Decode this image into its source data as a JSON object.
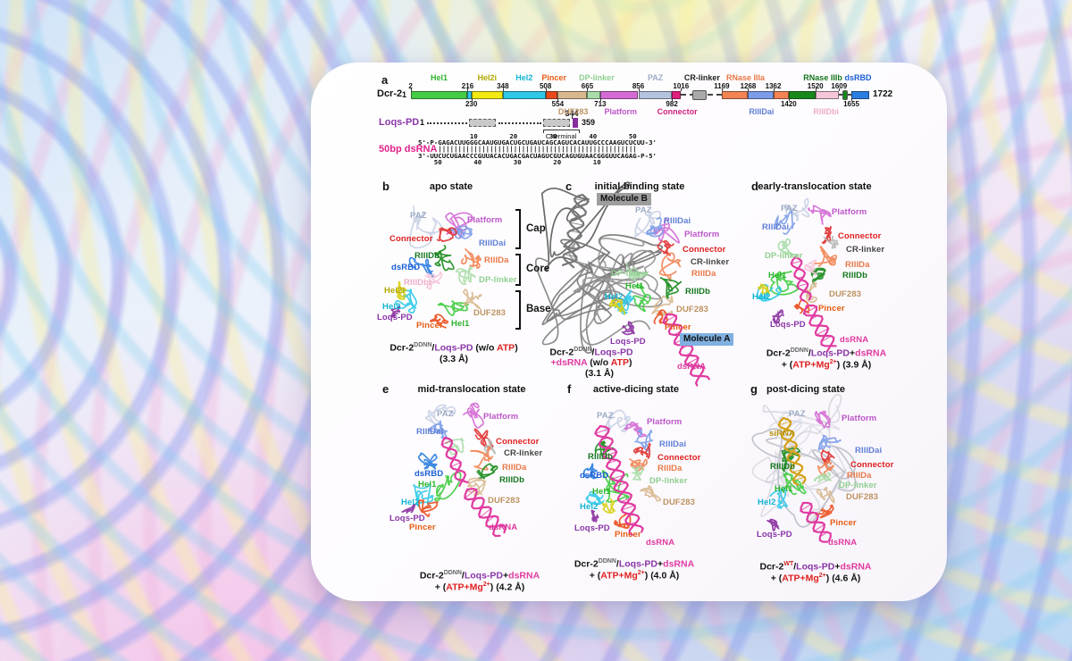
{
  "panel_a": {
    "letter": "a",
    "dcr2": {
      "label": "Dcr-2",
      "start": "1",
      "end": "1722",
      "segments": [
        {
          "n": "Hel1",
          "s": 2,
          "e": 216,
          "c": "#44cc44"
        },
        {
          "n": "Hel2",
          "s": 216,
          "e": 230,
          "c": "#2fc9e8"
        },
        {
          "n": "Hel2i",
          "s": 230,
          "e": 348,
          "c": "#f3e812"
        },
        {
          "n": "Hel2",
          "s": 348,
          "e": 508,
          "c": "#2fc9e8"
        },
        {
          "n": "Pincer",
          "s": 508,
          "e": 554,
          "c": "#ea4a1a"
        },
        {
          "n": "DUF283",
          "s": 554,
          "e": 665,
          "c": "#d7b88f"
        },
        {
          "n": "DP-linker",
          "s": 665,
          "e": 713,
          "c": "#a9dca9"
        },
        {
          "n": "Platform",
          "s": 713,
          "e": 856,
          "c": "#d46ad4"
        },
        {
          "n": "PAZ",
          "s": 856,
          "e": 982,
          "c": "#b3c3de"
        },
        {
          "n": "Connector",
          "s": 982,
          "e": 1016,
          "c": "#e01f7e"
        },
        {
          "n": "CR-linker",
          "s": 1016,
          "e": 1169,
          "type": "dash"
        },
        {
          "n": "CR-linker",
          "s": 1060,
          "e": 1112,
          "c": "#a9a9a9",
          "type": "box"
        },
        {
          "n": "RNase IIIa",
          "s": 1169,
          "e": 1268,
          "c": "#f28352"
        },
        {
          "n": "RIIIDai",
          "s": 1268,
          "e": 1362,
          "c": "#7b9ce8"
        },
        {
          "n": "RNase IIIa",
          "s": 1362,
          "e": 1420,
          "c": "#f28352"
        },
        {
          "n": "RNase IIIb",
          "s": 1420,
          "e": 1520,
          "c": "#16891a"
        },
        {
          "n": "RIIIDbi",
          "s": 1520,
          "e": 1609,
          "c": "#f5c6da"
        },
        {
          "n": "linker",
          "s": 1609,
          "e": 1655,
          "type": "dash"
        },
        {
          "n": "RNase IIIb",
          "s": 1622,
          "e": 1640,
          "c": "#16891a",
          "type": "box"
        },
        {
          "n": "dsRBD",
          "s": 1655,
          "e": 1722,
          "c": "#2b7de0"
        }
      ],
      "ticks_above": [
        {
          "t": "2",
          "r": 2
        },
        {
          "t": "216",
          "r": 216
        },
        {
          "t": "348",
          "r": 348
        },
        {
          "t": "508",
          "r": 508
        },
        {
          "t": "665",
          "r": 665
        },
        {
          "t": "856",
          "r": 856
        },
        {
          "t": "1016",
          "r": 1016
        },
        {
          "t": "1169",
          "r": 1169
        },
        {
          "t": "1268",
          "r": 1268
        },
        {
          "t": "1362",
          "r": 1362
        },
        {
          "t": "1520",
          "r": 1520
        },
        {
          "t": "1609",
          "r": 1609
        }
      ],
      "ticks_below": [
        {
          "t": "230",
          "r": 230
        },
        {
          "t": "554",
          "r": 554
        },
        {
          "t": "713",
          "r": 713
        },
        {
          "t": "982",
          "r": 982
        },
        {
          "t": "1420",
          "r": 1420
        },
        {
          "t": "1655",
          "r": 1655
        }
      ],
      "names_above": [
        {
          "t": "Hel1",
          "c": "#2cb42c",
          "r": 109
        },
        {
          "t": "Hel2i",
          "c": "#b1a800",
          "r": 289
        },
        {
          "t": "Hel2",
          "c": "#12b5d5",
          "r": 428
        },
        {
          "t": "Pincer",
          "c": "#e55c12",
          "r": 540
        },
        {
          "t": "DP-linker",
          "c": "#8fcf8f",
          "r": 700
        },
        {
          "t": "PAZ",
          "c": "#9dabc4",
          "r": 920
        },
        {
          "t": "CR-linker",
          "c": "#222222",
          "r": 1095
        },
        {
          "t": "RNase IIIa",
          "c": "#e87848",
          "r": 1258
        },
        {
          "t": "RNase IIIb",
          "c": "#14771d",
          "r": 1548
        },
        {
          "t": "dsRBD",
          "c": "#1a5fd6",
          "r": 1680
        }
      ],
      "names_below": [
        {
          "t": "DUF283",
          "c": "#bd9260",
          "r": 612
        },
        {
          "t": "Platform",
          "c": "#bb55c8",
          "r": 790
        },
        {
          "t": "Connector",
          "c": "#d4217e",
          "r": 1002
        },
        {
          "t": "RIIIDai",
          "c": "#5f7fd6",
          "r": 1318
        },
        {
          "t": "RIIIDbi",
          "c": "#eeadca",
          "r": 1560
        }
      ]
    },
    "loqs": {
      "label": "Loqs-PD",
      "start": "1",
      "mid": "344",
      "end": "359",
      "cterm": "C-terminal",
      "box_color": "#8a2d9e"
    },
    "dsrna": {
      "label": "50bp dsRNA",
      "lines": [
        "             10        20        30        40        50",
        "5'-P-GAGACUUGGGCAAUGUGACUGCUGAUCAGCAGUCACAUUGCCCAAGUCUCUU-3'",
        "     ||||||||||||||||||||||||||||||||||||||||||||||||||",
        "3'-UUCUCUGAACCCGUUACACUGACGACUAGUCGUCAGUGUAACGGGUUCAGAG-P-5'",
        "    50        40        30        20        10"
      ]
    }
  },
  "panels": [
    {
      "id": "b",
      "letter": "b",
      "title": "apo state",
      "labels": [
        {
          "t": "PAZ",
          "c": "#9dabc4"
        },
        {
          "t": "Platform",
          "c": "#bb55c8"
        },
        {
          "t": "Connector",
          "c": "#e01f1f"
        },
        {
          "t": "RIIIDai",
          "c": "#5f7fd6"
        },
        {
          "t": "RIIIDb",
          "c": "#14771d"
        },
        {
          "t": "dsRBD",
          "c": "#1a5fd6"
        },
        {
          "t": "RIIIDa",
          "c": "#e87848"
        },
        {
          "t": "RIIIDbi",
          "c": "#eeadca"
        },
        {
          "t": "DP-linker",
          "c": "#8fcf8f"
        },
        {
          "t": "Hel2i",
          "c": "#b1a800"
        },
        {
          "t": "Hel2",
          "c": "#12b5d5"
        },
        {
          "t": "Loqs-PD",
          "c": "#8a35a8"
        },
        {
          "t": "Pincer",
          "c": "#e55c12"
        },
        {
          "t": "Hel1",
          "c": "#2cb42c"
        },
        {
          "t": "DUF283",
          "c": "#bd9260"
        }
      ],
      "brackets": [
        "Cap",
        "Core",
        "Base"
      ],
      "caption": [
        [
          {
            "t": "Dcr-2",
            "c": "#111111"
          },
          {
            "t": "DDNN",
            "c": "#666666",
            "sup": 1
          },
          {
            "t": "/",
            "c": "#111111"
          },
          {
            "t": "Loqs-PD",
            "c": "#8a35a8"
          },
          {
            "t": " (w/o ",
            "c": "#111111"
          },
          {
            "t": "ATP",
            "c": "#e01f1f"
          },
          {
            "t": ")",
            "c": "#111111"
          }
        ],
        [
          {
            "t": "(3.3 Å)",
            "c": "#111111"
          }
        ]
      ]
    },
    {
      "id": "c",
      "letter": "c",
      "title": "initial-binding state",
      "badges": [
        {
          "t": "Molecule B",
          "bg": "#9d9d9d"
        },
        {
          "t": "Molecule A",
          "bg": "#7fb0e0"
        }
      ],
      "labels": [
        {
          "t": "PAZ",
          "c": "#9dabc4"
        },
        {
          "t": "RIIIDai",
          "c": "#5f7fd6"
        },
        {
          "t": "Platform",
          "c": "#bb55c8"
        },
        {
          "t": "Connector",
          "c": "#e01f1f"
        },
        {
          "t": "CR-linker",
          "c": "#444444"
        },
        {
          "t": "RIIIDa",
          "c": "#e87848"
        },
        {
          "t": "DP-linker",
          "c": "#8fcf8f"
        },
        {
          "t": "Hel1",
          "c": "#2cb42c"
        },
        {
          "t": "Hel2",
          "c": "#12b5d5"
        },
        {
          "t": "RIIIDb",
          "c": "#14771d"
        },
        {
          "t": "DUF283",
          "c": "#bd9260"
        },
        {
          "t": "Pincer",
          "c": "#e55c12"
        },
        {
          "t": "Loqs-PD",
          "c": "#8a35a8"
        },
        {
          "t": "dsRNA",
          "c": "#e03aa0"
        }
      ],
      "caption": [
        [
          {
            "t": "Dcr-2",
            "c": "#111111"
          },
          {
            "t": "DDNN",
            "c": "#666666",
            "sup": 1
          },
          {
            "t": "/",
            "c": "#111111"
          },
          {
            "t": "Loqs-PD",
            "c": "#8a35a8"
          }
        ],
        [
          {
            "t": "+dsRNA",
            "c": "#e03aa0"
          },
          {
            "t": " (w/o ",
            "c": "#111111"
          },
          {
            "t": "ATP",
            "c": "#e01f1f"
          },
          {
            "t": ")",
            "c": "#111111"
          }
        ],
        [
          {
            "t": "(3.1 Å)",
            "c": "#111111"
          }
        ]
      ]
    },
    {
      "id": "d",
      "letter": "d",
      "title": "early-translocation state",
      "labels": [
        {
          "t": "PAZ",
          "c": "#9dabc4"
        },
        {
          "t": "Platform",
          "c": "#bb55c8"
        },
        {
          "t": "RIIIDai",
          "c": "#5f7fd6"
        },
        {
          "t": "Connector",
          "c": "#e01f1f"
        },
        {
          "t": "CR-linker",
          "c": "#444444"
        },
        {
          "t": "DP-linker",
          "c": "#8fcf8f"
        },
        {
          "t": "RIIIDa",
          "c": "#e87848"
        },
        {
          "t": "RIIIDb",
          "c": "#14771d"
        },
        {
          "t": "Hel1",
          "c": "#2cb42c"
        },
        {
          "t": "Hel2",
          "c": "#12b5d5"
        },
        {
          "t": "DUF283",
          "c": "#bd9260"
        },
        {
          "t": "Pincer",
          "c": "#e55c12"
        },
        {
          "t": "Loqs-PD",
          "c": "#8a35a8"
        },
        {
          "t": "dsRNA",
          "c": "#e03aa0"
        }
      ],
      "caption": [
        [
          {
            "t": "Dcr-2",
            "c": "#111111"
          },
          {
            "t": "DDNN",
            "c": "#666666",
            "sup": 1
          },
          {
            "t": "/",
            "c": "#111111"
          },
          {
            "t": "Loqs-PD",
            "c": "#8a35a8"
          },
          {
            "t": "+",
            "c": "#111111"
          },
          {
            "t": "dsRNA",
            "c": "#e03aa0"
          }
        ],
        [
          {
            "t": "+ (",
            "c": "#111111"
          },
          {
            "t": "ATP+Mg",
            "c": "#e01f1f"
          },
          {
            "t": "2+",
            "c": "#e01f1f",
            "sup": 1
          },
          {
            "t": ") ",
            "c": "#111111"
          },
          {
            "t": "(3.9 Å)",
            "c": "#111111"
          }
        ]
      ]
    },
    {
      "id": "e",
      "letter": "e",
      "title": "mid-translocation state",
      "labels": [
        {
          "t": "PAZ",
          "c": "#9dabc4"
        },
        {
          "t": "Platform",
          "c": "#bb55c8"
        },
        {
          "t": "RIIIDai",
          "c": "#5f7fd6"
        },
        {
          "t": "Connector",
          "c": "#e01f1f"
        },
        {
          "t": "CR-linker",
          "c": "#444444"
        },
        {
          "t": "dsRBD",
          "c": "#1a5fd6"
        },
        {
          "t": "RIIIDa",
          "c": "#e87848"
        },
        {
          "t": "Hel1",
          "c": "#2cb42c"
        },
        {
          "t": "RIIIDb",
          "c": "#14771d"
        },
        {
          "t": "Hel2",
          "c": "#12b5d5"
        },
        {
          "t": "DUF283",
          "c": "#bd9260"
        },
        {
          "t": "Loqs-PD",
          "c": "#8a35a8"
        },
        {
          "t": "Pincer",
          "c": "#e55c12"
        },
        {
          "t": "dsRNA",
          "c": "#e03aa0"
        }
      ],
      "caption": [
        [
          {
            "t": "Dcr-2",
            "c": "#111111"
          },
          {
            "t": "DDNN",
            "c": "#666666",
            "sup": 1
          },
          {
            "t": "/",
            "c": "#111111"
          },
          {
            "t": "Loqs-PD",
            "c": "#8a35a8"
          },
          {
            "t": "+",
            "c": "#111111"
          },
          {
            "t": "dsRNA",
            "c": "#e03aa0"
          }
        ],
        [
          {
            "t": "+ (",
            "c": "#111111"
          },
          {
            "t": "ATP+Mg",
            "c": "#e01f1f"
          },
          {
            "t": "2+",
            "c": "#e01f1f",
            "sup": 1
          },
          {
            "t": ") ",
            "c": "#111111"
          },
          {
            "t": "(4.2 Å)",
            "c": "#111111"
          }
        ]
      ]
    },
    {
      "id": "f",
      "letter": "f",
      "title": "active-dicing state",
      "labels": [
        {
          "t": "PAZ",
          "c": "#9dabc4"
        },
        {
          "t": "Platform",
          "c": "#bb55c8"
        },
        {
          "t": "RIIIDai",
          "c": "#5f7fd6"
        },
        {
          "t": "RIIIDb",
          "c": "#14771d"
        },
        {
          "t": "Connector",
          "c": "#e01f1f"
        },
        {
          "t": "RIIIDa",
          "c": "#e87848"
        },
        {
          "t": "dsRBD",
          "c": "#1a5fd6"
        },
        {
          "t": "DP-linker",
          "c": "#8fcf8f"
        },
        {
          "t": "Hel1",
          "c": "#2cb42c"
        },
        {
          "t": "Hel2",
          "c": "#12b5d5"
        },
        {
          "t": "DUF283",
          "c": "#bd9260"
        },
        {
          "t": "Loqs-PD",
          "c": "#8a35a8"
        },
        {
          "t": "Pincer",
          "c": "#e55c12"
        },
        {
          "t": "dsRNA",
          "c": "#e03aa0"
        }
      ],
      "caption": [
        [
          {
            "t": "Dcr-2",
            "c": "#111111"
          },
          {
            "t": "DDNN",
            "c": "#666666",
            "sup": 1
          },
          {
            "t": "/",
            "c": "#111111"
          },
          {
            "t": "Loqs-PD",
            "c": "#8a35a8"
          },
          {
            "t": "+",
            "c": "#111111"
          },
          {
            "t": "dsRNA",
            "c": "#e03aa0"
          }
        ],
        [
          {
            "t": "+ (",
            "c": "#111111"
          },
          {
            "t": "ATP+Mg",
            "c": "#e01f1f"
          },
          {
            "t": "2+",
            "c": "#e01f1f",
            "sup": 1
          },
          {
            "t": ") ",
            "c": "#111111"
          },
          {
            "t": "(4.0 Å)",
            "c": "#111111"
          }
        ]
      ]
    },
    {
      "id": "g",
      "letter": "g",
      "title": "post-dicing state",
      "labels": [
        {
          "t": "PAZ",
          "c": "#9dabc4"
        },
        {
          "t": "Platform",
          "c": "#bb55c8"
        },
        {
          "t": "siRNA",
          "c": "#b8930b"
        },
        {
          "t": "RIIIDai",
          "c": "#5f7fd6"
        },
        {
          "t": "RIIIDb",
          "c": "#14771d"
        },
        {
          "t": "Connector",
          "c": "#e01f1f"
        },
        {
          "t": "RIIIDa",
          "c": "#e87848"
        },
        {
          "t": "DP-linker",
          "c": "#8fcf8f"
        },
        {
          "t": "Hel1",
          "c": "#2cb42c"
        },
        {
          "t": "DUF283",
          "c": "#bd9260"
        },
        {
          "t": "Hel2",
          "c": "#12b5d5"
        },
        {
          "t": "Pincer",
          "c": "#e55c12"
        },
        {
          "t": "Loqs-PD",
          "c": "#8a35a8"
        },
        {
          "t": "dsRNA",
          "c": "#e03aa0"
        }
      ],
      "caption": [
        [
          {
            "t": "Dcr-2",
            "c": "#111111"
          },
          {
            "t": "WT",
            "c": "#cc2222",
            "sup": 1
          },
          {
            "t": "/",
            "c": "#111111"
          },
          {
            "t": "Loqs-PD",
            "c": "#8a35a8"
          },
          {
            "t": "+",
            "c": "#111111"
          },
          {
            "t": "dsRNA",
            "c": "#e03aa0"
          }
        ],
        [
          {
            "t": "+ (",
            "c": "#111111"
          },
          {
            "t": "ATP+Mg",
            "c": "#e01f1f"
          },
          {
            "t": "2+",
            "c": "#e01f1f",
            "sup": 1
          },
          {
            "t": ") ",
            "c": "#111111"
          },
          {
            "t": "(4.6 Å)",
            "c": "#111111"
          }
        ]
      ]
    }
  ]
}
